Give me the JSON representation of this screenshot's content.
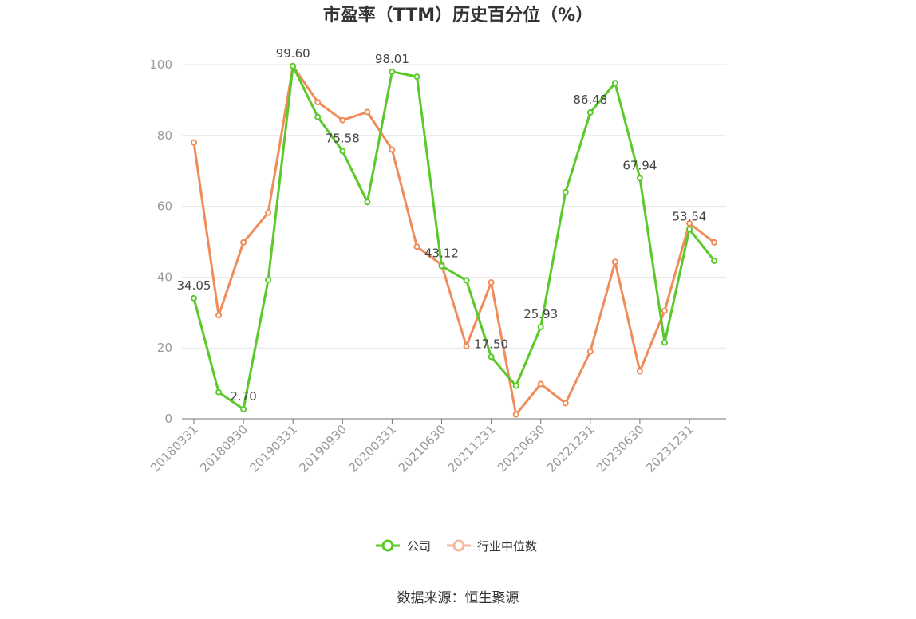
{
  "chart_data": {
    "type": "line",
    "title": "市盈率（TTM）历史百分位（%）",
    "ylim": [
      0,
      100
    ],
    "y_ticks": [
      0,
      20,
      40,
      60,
      80,
      100
    ],
    "x_tick_labels": [
      "20180331",
      "20180930",
      "20190331",
      "20190930",
      "20200331",
      "20210630",
      "20211231",
      "20220630",
      "20221231",
      "20230630",
      "20231231"
    ],
    "series": [
      {
        "name": "公司",
        "color": "#5ac92a",
        "values": [
          34.05,
          7.5,
          2.7,
          39.2,
          99.6,
          85.2,
          75.58,
          61.2,
          98.01,
          96.6,
          43.12,
          39.1,
          17.5,
          9.3,
          25.93,
          64.0,
          86.48,
          94.8,
          67.94,
          21.5,
          53.54,
          44.6
        ],
        "labels": {
          "0": "34.05",
          "2": "2.70",
          "4": "99.60",
          "6": "75.58",
          "8": "98.01",
          "10": "43.12",
          "12": "17.50",
          "14": "25.93",
          "16": "86.48",
          "18": "67.94",
          "20": "53.54"
        }
      },
      {
        "name": "行业中位数",
        "color": "#f08c5a",
        "values": [
          78.0,
          29.2,
          49.8,
          58.2,
          99.6,
          89.4,
          84.3,
          86.6,
          76.0,
          48.6,
          43.5,
          20.5,
          38.5,
          1.2,
          9.8,
          4.4,
          19.0,
          44.3,
          13.4,
          30.5,
          55.2,
          49.8
        ]
      }
    ],
    "legend_position": "bottom"
  },
  "footer": {
    "source": "数据来源：恒生聚源"
  }
}
